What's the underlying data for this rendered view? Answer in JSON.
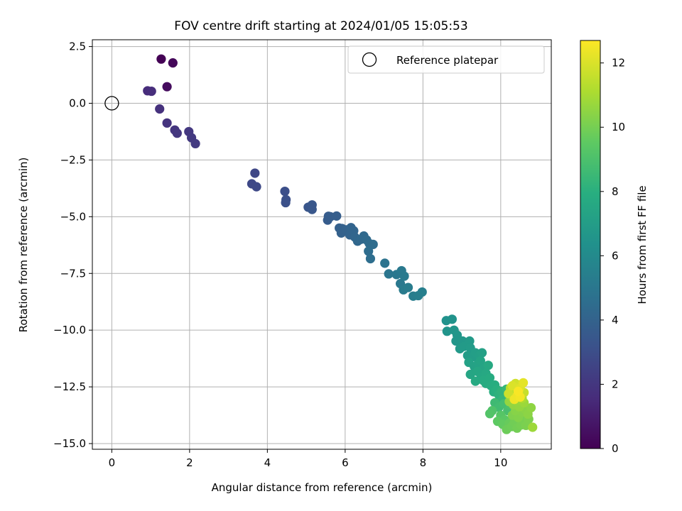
{
  "chart_data": {
    "type": "scatter",
    "title": "FOV centre drift starting at 2024/01/05 15:05:53",
    "xlabel": "Angular distance from reference (arcmin)",
    "ylabel": "Rotation from reference (arcmin)",
    "xlim": [
      -0.5,
      11.3
    ],
    "ylim": [
      -15.25,
      2.8
    ],
    "x_ticks": [
      0,
      2,
      4,
      6,
      8,
      10
    ],
    "x_tick_labels": [
      "0",
      "2",
      "4",
      "6",
      "8",
      "10"
    ],
    "y_ticks": [
      2.5,
      0,
      -2.5,
      -5,
      -7.5,
      -10,
      -12.5,
      -15
    ],
    "y_tick_labels": [
      "2.5",
      "0.0",
      "−2.5",
      "−5.0",
      "−7.5",
      "−10.0",
      "−12.5",
      "−15.0"
    ],
    "grid": true,
    "legend": {
      "placement": "top-right",
      "entries": [
        "Reference platepar"
      ]
    },
    "reference_point": {
      "x": 0.0,
      "y": 0.0,
      "label": "Reference platepar"
    },
    "colorbar": {
      "label": "Hours from first FF file",
      "colormap": "viridis",
      "range": [
        0,
        12.7
      ],
      "ticks": [
        0,
        2,
        4,
        6,
        8,
        10,
        12
      ],
      "tick_labels": [
        "0",
        "2",
        "4",
        "6",
        "8",
        "10",
        "12"
      ]
    },
    "points": [
      {
        "x": 1.27,
        "y": 1.95,
        "h": 0.05
      },
      {
        "x": 1.57,
        "y": 1.78,
        "h": 0.2
      },
      {
        "x": 1.42,
        "y": 0.73,
        "h": 0.4
      },
      {
        "x": 0.92,
        "y": 0.55,
        "h": 1.6
      },
      {
        "x": 1.02,
        "y": 0.53,
        "h": 1.65
      },
      {
        "x": 1.23,
        "y": -0.25,
        "h": 1.75
      },
      {
        "x": 1.42,
        "y": -0.87,
        "h": 1.85
      },
      {
        "x": 1.62,
        "y": -1.18,
        "h": 1.95
      },
      {
        "x": 1.68,
        "y": -1.32,
        "h": 2.0
      },
      {
        "x": 1.98,
        "y": -1.25,
        "h": 2.05
      },
      {
        "x": 2.05,
        "y": -1.52,
        "h": 2.1
      },
      {
        "x": 2.15,
        "y": -1.78,
        "h": 2.15
      },
      {
        "x": 3.68,
        "y": -3.08,
        "h": 2.7
      },
      {
        "x": 3.6,
        "y": -3.55,
        "h": 2.75
      },
      {
        "x": 3.72,
        "y": -3.68,
        "h": 2.8
      },
      {
        "x": 4.45,
        "y": -3.88,
        "h": 3.05
      },
      {
        "x": 4.48,
        "y": -4.25,
        "h": 3.1
      },
      {
        "x": 4.47,
        "y": -4.38,
        "h": 3.12
      },
      {
        "x": 5.05,
        "y": -4.58,
        "h": 3.35
      },
      {
        "x": 5.15,
        "y": -4.48,
        "h": 3.4
      },
      {
        "x": 5.15,
        "y": -4.68,
        "h": 3.42
      },
      {
        "x": 5.57,
        "y": -4.98,
        "h": 3.65
      },
      {
        "x": 5.55,
        "y": -5.15,
        "h": 3.68
      },
      {
        "x": 5.62,
        "y": -5.0,
        "h": 3.7
      },
      {
        "x": 5.78,
        "y": -4.97,
        "h": 3.75
      },
      {
        "x": 5.85,
        "y": -5.5,
        "h": 3.85
      },
      {
        "x": 5.92,
        "y": -5.52,
        "h": 3.88
      },
      {
        "x": 5.9,
        "y": -5.72,
        "h": 3.9
      },
      {
        "x": 6.02,
        "y": -5.58,
        "h": 3.95
      },
      {
        "x": 6.12,
        "y": -5.8,
        "h": 4.0
      },
      {
        "x": 6.15,
        "y": -5.48,
        "h": 4.05
      },
      {
        "x": 6.22,
        "y": -5.62,
        "h": 4.1
      },
      {
        "x": 6.25,
        "y": -5.9,
        "h": 4.15
      },
      {
        "x": 6.32,
        "y": -6.08,
        "h": 4.2
      },
      {
        "x": 6.4,
        "y": -6.0,
        "h": 4.25
      },
      {
        "x": 6.48,
        "y": -5.85,
        "h": 4.3
      },
      {
        "x": 6.55,
        "y": -6.02,
        "h": 4.35
      },
      {
        "x": 6.62,
        "y": -6.18,
        "h": 4.4
      },
      {
        "x": 6.72,
        "y": -6.22,
        "h": 4.45
      },
      {
        "x": 6.6,
        "y": -6.52,
        "h": 4.5
      },
      {
        "x": 6.65,
        "y": -6.85,
        "h": 4.55
      },
      {
        "x": 7.02,
        "y": -7.05,
        "h": 4.8
      },
      {
        "x": 7.12,
        "y": -7.52,
        "h": 4.9
      },
      {
        "x": 7.32,
        "y": -7.55,
        "h": 5.0
      },
      {
        "x": 7.42,
        "y": -7.95,
        "h": 5.05
      },
      {
        "x": 7.45,
        "y": -7.38,
        "h": 5.1
      },
      {
        "x": 7.52,
        "y": -7.62,
        "h": 5.15
      },
      {
        "x": 7.5,
        "y": -8.22,
        "h": 5.2
      },
      {
        "x": 7.62,
        "y": -8.12,
        "h": 5.25
      },
      {
        "x": 7.75,
        "y": -8.5,
        "h": 5.35
      },
      {
        "x": 7.88,
        "y": -8.48,
        "h": 5.4
      },
      {
        "x": 7.98,
        "y": -8.32,
        "h": 5.45
      },
      {
        "x": 8.6,
        "y": -9.58,
        "h": 6.4
      },
      {
        "x": 8.75,
        "y": -9.52,
        "h": 6.45
      },
      {
        "x": 8.62,
        "y": -10.05,
        "h": 6.5
      },
      {
        "x": 8.8,
        "y": -10.0,
        "h": 6.55
      },
      {
        "x": 8.88,
        "y": -10.22,
        "h": 6.6
      },
      {
        "x": 8.85,
        "y": -10.48,
        "h": 6.62
      },
      {
        "x": 9.02,
        "y": -10.48,
        "h": 6.7
      },
      {
        "x": 9.12,
        "y": -10.58,
        "h": 6.75
      },
      {
        "x": 8.95,
        "y": -10.82,
        "h": 6.8
      },
      {
        "x": 9.05,
        "y": -10.72,
        "h": 6.82
      },
      {
        "x": 9.2,
        "y": -10.48,
        "h": 6.85
      },
      {
        "x": 9.22,
        "y": -10.78,
        "h": 6.9
      },
      {
        "x": 9.15,
        "y": -11.12,
        "h": 6.95
      },
      {
        "x": 9.28,
        "y": -11.18,
        "h": 7.0
      },
      {
        "x": 9.35,
        "y": -11.0,
        "h": 7.05
      },
      {
        "x": 9.45,
        "y": -11.1,
        "h": 7.1
      },
      {
        "x": 9.52,
        "y": -11.0,
        "h": 7.15
      },
      {
        "x": 9.18,
        "y": -11.42,
        "h": 7.2
      },
      {
        "x": 9.32,
        "y": -11.6,
        "h": 7.25
      },
      {
        "x": 9.42,
        "y": -11.48,
        "h": 7.3
      },
      {
        "x": 9.48,
        "y": -11.35,
        "h": 7.35
      },
      {
        "x": 9.55,
        "y": -11.7,
        "h": 7.4
      },
      {
        "x": 9.22,
        "y": -11.95,
        "h": 7.45
      },
      {
        "x": 9.4,
        "y": -11.82,
        "h": 7.5
      },
      {
        "x": 9.5,
        "y": -12.05,
        "h": 7.55
      },
      {
        "x": 9.62,
        "y": -11.9,
        "h": 7.6
      },
      {
        "x": 9.68,
        "y": -11.55,
        "h": 7.62
      },
      {
        "x": 9.35,
        "y": -12.25,
        "h": 7.65
      },
      {
        "x": 9.55,
        "y": -12.22,
        "h": 7.7
      },
      {
        "x": 9.62,
        "y": -12.35,
        "h": 7.75
      },
      {
        "x": 9.72,
        "y": -12.1,
        "h": 7.8
      },
      {
        "x": 9.75,
        "y": -12.45,
        "h": 7.85
      },
      {
        "x": 9.85,
        "y": -12.42,
        "h": 7.9
      },
      {
        "x": 9.82,
        "y": -12.72,
        "h": 7.95
      },
      {
        "x": 9.9,
        "y": -12.62,
        "h": 8.0
      },
      {
        "x": 9.95,
        "y": -12.85,
        "h": 8.1
      },
      {
        "x": 10.02,
        "y": -12.7,
        "h": 8.2
      },
      {
        "x": 10.05,
        "y": -13.05,
        "h": 8.3
      },
      {
        "x": 10.15,
        "y": -12.6,
        "h": 8.4
      },
      {
        "x": 10.2,
        "y": -12.9,
        "h": 8.5
      },
      {
        "x": 9.85,
        "y": -13.2,
        "h": 8.6
      },
      {
        "x": 9.95,
        "y": -13.4,
        "h": 8.7
      },
      {
        "x": 10.08,
        "y": -13.25,
        "h": 8.8
      },
      {
        "x": 10.18,
        "y": -13.55,
        "h": 8.9
      },
      {
        "x": 10.25,
        "y": -13.3,
        "h": 9.0
      },
      {
        "x": 9.78,
        "y": -13.55,
        "h": 9.1
      },
      {
        "x": 9.72,
        "y": -13.68,
        "h": 9.2
      },
      {
        "x": 10.0,
        "y": -13.75,
        "h": 9.3
      },
      {
        "x": 10.1,
        "y": -13.95,
        "h": 9.4
      },
      {
        "x": 9.92,
        "y": -14.02,
        "h": 9.5
      },
      {
        "x": 10.05,
        "y": -14.15,
        "h": 9.6
      },
      {
        "x": 10.22,
        "y": -14.1,
        "h": 9.7
      },
      {
        "x": 10.15,
        "y": -14.38,
        "h": 9.8
      },
      {
        "x": 10.28,
        "y": -14.25,
        "h": 9.85
      },
      {
        "x": 10.35,
        "y": -14.05,
        "h": 9.9
      },
      {
        "x": 10.42,
        "y": -14.32,
        "h": 9.95
      },
      {
        "x": 10.52,
        "y": -14.18,
        "h": 10.0
      },
      {
        "x": 10.58,
        "y": -13.98,
        "h": 10.05
      },
      {
        "x": 10.65,
        "y": -14.2,
        "h": 10.1
      },
      {
        "x": 10.72,
        "y": -13.92,
        "h": 10.15
      },
      {
        "x": 10.3,
        "y": -13.75,
        "h": 10.2
      },
      {
        "x": 10.45,
        "y": -13.85,
        "h": 10.25
      },
      {
        "x": 10.55,
        "y": -13.62,
        "h": 10.3
      },
      {
        "x": 10.38,
        "y": -13.55,
        "h": 10.35
      },
      {
        "x": 10.62,
        "y": -13.48,
        "h": 10.4
      },
      {
        "x": 10.7,
        "y": -13.7,
        "h": 10.45
      },
      {
        "x": 10.78,
        "y": -13.42,
        "h": 10.5
      },
      {
        "x": 10.32,
        "y": -13.28,
        "h": 10.55
      },
      {
        "x": 10.48,
        "y": -13.38,
        "h": 10.6
      },
      {
        "x": 10.22,
        "y": -13.15,
        "h": 10.65
      },
      {
        "x": 10.4,
        "y": -13.1,
        "h": 10.7
      },
      {
        "x": 10.6,
        "y": -13.2,
        "h": 10.75
      },
      {
        "x": 10.82,
        "y": -14.28,
        "h": 10.8
      },
      {
        "x": 10.3,
        "y": -12.95,
        "h": 10.9
      },
      {
        "x": 10.45,
        "y": -12.88,
        "h": 11.0
      },
      {
        "x": 10.55,
        "y": -13.0,
        "h": 11.1
      },
      {
        "x": 10.35,
        "y": -12.72,
        "h": 11.2
      },
      {
        "x": 10.5,
        "y": -12.65,
        "h": 11.3
      },
      {
        "x": 10.25,
        "y": -12.55,
        "h": 11.4
      },
      {
        "x": 10.42,
        "y": -12.48,
        "h": 11.5
      },
      {
        "x": 10.6,
        "y": -12.75,
        "h": 11.6
      },
      {
        "x": 10.2,
        "y": -12.8,
        "h": 11.7
      },
      {
        "x": 10.38,
        "y": -12.35,
        "h": 11.8
      },
      {
        "x": 10.52,
        "y": -12.42,
        "h": 11.9
      },
      {
        "x": 10.3,
        "y": -12.45,
        "h": 12.0
      },
      {
        "x": 10.48,
        "y": -12.58,
        "h": 12.1
      },
      {
        "x": 10.58,
        "y": -12.32,
        "h": 12.2
      },
      {
        "x": 10.42,
        "y": -12.9,
        "h": 12.3
      },
      {
        "x": 10.35,
        "y": -13.05,
        "h": 12.4
      },
      {
        "x": 10.5,
        "y": -12.95,
        "h": 12.5
      },
      {
        "x": 10.45,
        "y": -12.7,
        "h": 12.6
      }
    ]
  }
}
